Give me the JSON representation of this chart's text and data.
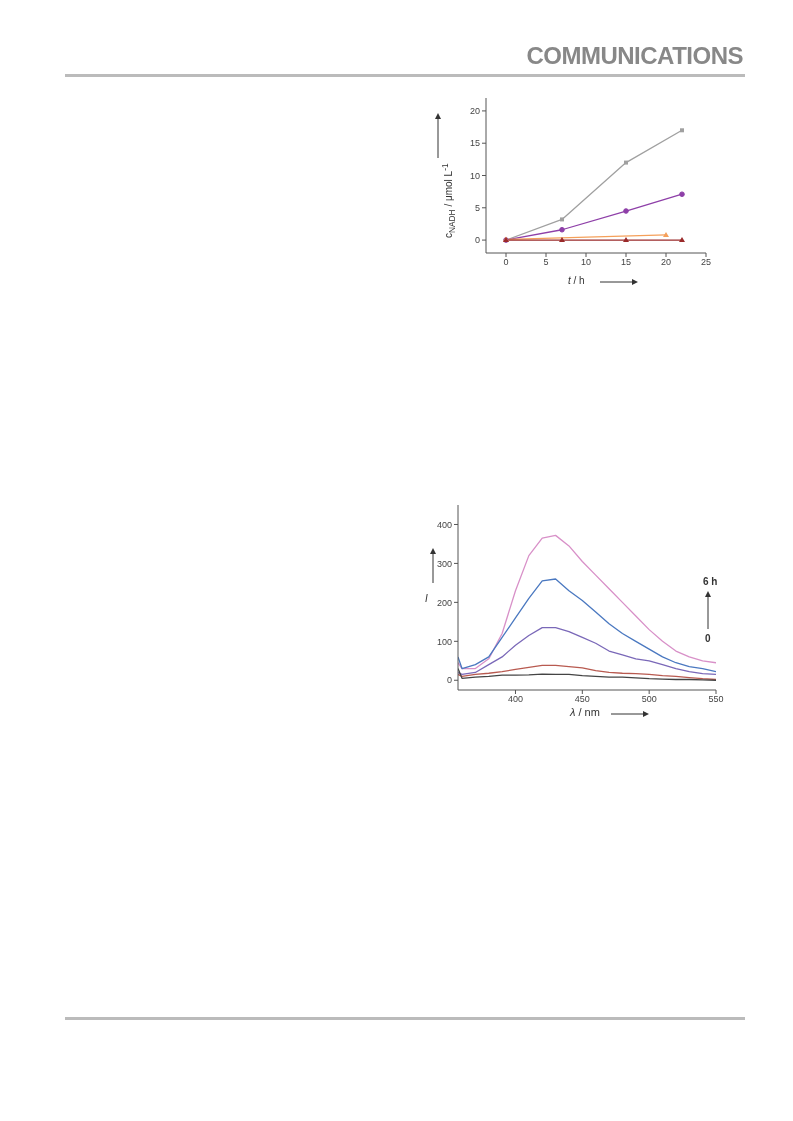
{
  "chart_data": [
    {
      "type": "line",
      "xlabel": "t / h",
      "ylabel": "c$_{NADH}$ / μmol L$^{-1}$",
      "annotations": [
        "COMMUNICATIONS"
      ],
      "xlim": [
        -2.5,
        25
      ],
      "xticks": [
        0,
        5,
        10,
        15,
        20,
        25
      ],
      "ylim": [
        -2,
        22
      ],
      "yticks": [
        0,
        5,
        10,
        15,
        20
      ],
      "line_style": "solid",
      "series": [
        {
          "color": "#a0a0a0",
          "marker": "square",
          "x": [
            0,
            7,
            15,
            22
          ],
          "values": [
            0,
            3.2,
            12,
            17
          ]
        },
        {
          "color": "#8e3fa8",
          "marker": "circle",
          "x": [
            0,
            7,
            15,
            22
          ],
          "values": [
            0,
            1.6,
            4.5,
            7.1
          ]
        },
        {
          "color": "#f5a05a",
          "marker": "triangle",
          "x": [
            0,
            20
          ],
          "values": [
            0.1,
            0.8
          ]
        },
        {
          "color": "#9a2a2a",
          "marker": "triangle",
          "x": [
            0,
            7,
            15,
            22
          ],
          "values": [
            0,
            0,
            0,
            0
          ]
        }
      ]
    },
    {
      "type": "line",
      "xlabel": "λ / nm",
      "ylabel": "I",
      "annotations": [
        "6 h",
        "0"
      ],
      "xlim": [
        357,
        550
      ],
      "xticks": [
        400,
        450,
        500,
        550
      ],
      "ylim": [
        -25,
        450
      ],
      "yticks": [
        0,
        100,
        200,
        300,
        400
      ],
      "line_style": "solid",
      "marker": "none",
      "x": [
        357,
        360,
        370,
        380,
        390,
        400,
        410,
        420,
        430,
        440,
        450,
        460,
        470,
        480,
        490,
        500,
        510,
        520,
        530,
        540,
        550
      ],
      "series": [
        {
          "color": "#d890c8",
          "values": [
            45,
            30,
            30,
            55,
            120,
            230,
            320,
            365,
            372,
            345,
            305,
            270,
            235,
            200,
            165,
            130,
            100,
            75,
            60,
            50,
            45
          ]
        },
        {
          "color": "#4a78c0",
          "values": [
            60,
            30,
            40,
            60,
            110,
            160,
            210,
            255,
            260,
            230,
            205,
            175,
            145,
            120,
            100,
            80,
            60,
            45,
            35,
            30,
            22
          ]
        },
        {
          "color": "#7a68b8",
          "values": [
            20,
            15,
            20,
            40,
            60,
            90,
            115,
            135,
            135,
            125,
            110,
            95,
            75,
            65,
            55,
            50,
            40,
            30,
            22,
            17,
            15
          ]
        },
        {
          "color": "#b85a50",
          "values": [
            15,
            10,
            15,
            18,
            22,
            28,
            33,
            38,
            38,
            35,
            32,
            25,
            20,
            18,
            17,
            15,
            12,
            10,
            7,
            4,
            2
          ]
        },
        {
          "color": "#444444",
          "values": [
            30,
            5,
            8,
            10,
            13,
            13,
            14,
            16,
            15,
            15,
            12,
            10,
            8,
            8,
            6,
            4,
            3,
            2,
            2,
            1,
            0
          ]
        }
      ]
    }
  ]
}
